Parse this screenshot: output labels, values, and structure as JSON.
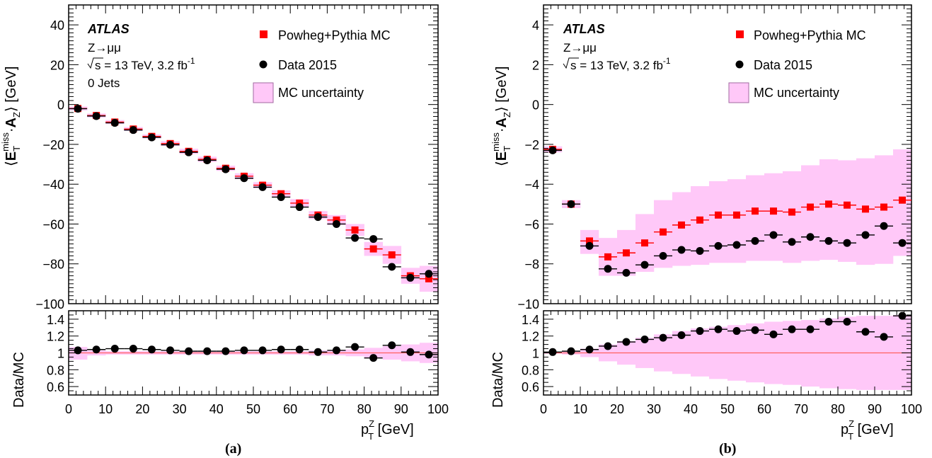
{
  "chart_data": [
    {
      "panel_label": "(a)",
      "type": "scatter",
      "experiment": "ATLAS",
      "process": "Z→μμ",
      "energy_text": "s = 13 TeV, 3.2 fb",
      "lumi_exp": "-1",
      "extra_text": "0 Jets",
      "legend": {
        "mc": "Powheg+Pythia MC",
        "data": "Data 2015",
        "unc": "MC uncertainty"
      },
      "ylabel_main": "E_T^miss · A_Z [GeV]",
      "ylabel_ratio": "Data/MC",
      "xlabel": "p_T^Z [GeV]",
      "xlim": [
        0,
        100
      ],
      "ylim": [
        -100,
        50
      ],
      "ratio_ylim": [
        0.5,
        1.5
      ],
      "x_ticks": [
        "0",
        "10",
        "20",
        "30",
        "40",
        "50",
        "60",
        "70",
        "80",
        "90",
        "100"
      ],
      "y_ticks": [
        "40",
        "20",
        "0",
        "−20",
        "−40",
        "−60",
        "−80",
        "−100"
      ],
      "ratio_ticks": [
        "1.4",
        "1.2",
        "1",
        "0.8",
        "0.6"
      ],
      "x": [
        2.5,
        7.5,
        12.5,
        17.5,
        22.5,
        27.5,
        32.5,
        37.5,
        42.5,
        47.5,
        52.5,
        57.5,
        62.5,
        67.5,
        72.5,
        77.5,
        82.5,
        87.5,
        92.5,
        97.5
      ],
      "mc": [
        -2,
        -5.5,
        -8.8,
        -12.3,
        -16,
        -19.6,
        -23.5,
        -27.5,
        -32,
        -36,
        -40.5,
        -44.8,
        -49.5,
        -55.5,
        -58,
        -63,
        -72.5,
        -75.5,
        -86,
        -87.5
      ],
      "data": [
        -2.1,
        -5.8,
        -9.2,
        -12.8,
        -16.5,
        -20.2,
        -24,
        -28,
        -32.5,
        -37,
        -41.5,
        -46.5,
        -51.5,
        -56.5,
        -60,
        -67,
        -67.5,
        -81.5,
        -87,
        -85
      ],
      "mc_unc_low": [
        -3,
        -6.5,
        -9.8,
        -13.3,
        -17,
        -20.8,
        -24.8,
        -28.8,
        -33.3,
        -37.5,
        -42,
        -46.5,
        -51.5,
        -57.5,
        -60.5,
        -66,
        -76,
        -80,
        -90,
        -94
      ],
      "mc_unc_high": [
        -1,
        -4.5,
        -7.8,
        -11.3,
        -15,
        -18.4,
        -22.2,
        -26.2,
        -30.7,
        -34.5,
        -39,
        -43.1,
        -47.5,
        -53.5,
        -55.5,
        -60,
        -69,
        -71,
        -82,
        -81
      ],
      "ratio": [
        1.03,
        1.04,
        1.05,
        1.05,
        1.04,
        1.03,
        1.02,
        1.02,
        1.02,
        1.03,
        1.03,
        1.04,
        1.04,
        1.01,
        1.03,
        1.07,
        0.94,
        1.09,
        1.01,
        0.98
      ],
      "ratio_unc_low": [
        0.92,
        0.97,
        0.98,
        0.98,
        0.98,
        0.98,
        0.98,
        0.98,
        0.98,
        0.98,
        0.98,
        0.98,
        0.98,
        0.97,
        0.97,
        0.96,
        0.94,
        0.92,
        0.9,
        0.88
      ],
      "ratio_unc_high": [
        1.07,
        1.03,
        1.02,
        1.02,
        1.02,
        1.02,
        1.02,
        1.02,
        1.02,
        1.02,
        1.02,
        1.02,
        1.02,
        1.03,
        1.03,
        1.04,
        1.06,
        1.08,
        1.1,
        1.12
      ]
    },
    {
      "panel_label": "(b)",
      "type": "scatter",
      "experiment": "ATLAS",
      "process": "Z→μμ",
      "energy_text": "s = 13 TeV, 3.2 fb",
      "lumi_exp": "-1",
      "legend": {
        "mc": "Powheg+Pythia MC",
        "data": "Data 2015",
        "unc": "MC uncertainty"
      },
      "ylabel_main": "E_T^miss · A_Z [GeV]",
      "ylabel_ratio": "Data/MC",
      "xlabel": "p_T^Z [GeV]",
      "xlim": [
        0,
        100
      ],
      "ylim": [
        -10,
        5
      ],
      "ratio_ylim": [
        0.5,
        1.5
      ],
      "x_ticks": [
        "0",
        "10",
        "20",
        "30",
        "40",
        "50",
        "60",
        "70",
        "80",
        "90",
        "100"
      ],
      "y_ticks": [
        "4",
        "2",
        "0",
        "−2",
        "−4",
        "−6",
        "−8",
        "−10"
      ],
      "ratio_ticks": [
        "1.4",
        "1.2",
        "1",
        "0.8",
        "0.6"
      ],
      "x": [
        2.5,
        7.5,
        12.5,
        17.5,
        22.5,
        27.5,
        32.5,
        37.5,
        42.5,
        47.5,
        52.5,
        57.5,
        62.5,
        67.5,
        72.5,
        77.5,
        82.5,
        87.5,
        92.5,
        97.5
      ],
      "mc": [
        -2.25,
        -5,
        -6.85,
        -7.65,
        -7.45,
        -6.95,
        -6.4,
        -6.05,
        -5.8,
        -5.55,
        -5.55,
        -5.35,
        -5.35,
        -5.4,
        -5.15,
        -5,
        -5.05,
        -5.25,
        -5.15,
        -4.8
      ],
      "data": [
        -2.3,
        -5,
        -7.1,
        -8.25,
        -8.45,
        -8.05,
        -7.6,
        -7.3,
        -7.35,
        -7.1,
        -7.05,
        -6.85,
        -6.55,
        -6.9,
        -6.65,
        -6.85,
        -6.95,
        -6.55,
        -6.1,
        -6.95
      ],
      "mc_unc_low": [
        -2.4,
        -5.2,
        -7.5,
        -8.6,
        -8.6,
        -8.4,
        -8.2,
        -8.1,
        -8.05,
        -7.95,
        -7.95,
        -7.85,
        -7.85,
        -7.95,
        -7.85,
        -7.8,
        -7.9,
        -8.05,
        -8,
        -7.6
      ],
      "mc_unc_high": [
        -2.1,
        -4.8,
        -6.3,
        -6.7,
        -6.3,
        -5.5,
        -4.8,
        -4.4,
        -4.1,
        -3.85,
        -3.75,
        -3.55,
        -3.45,
        -3.35,
        -3.05,
        -2.75,
        -2.8,
        -2.7,
        -2.55,
        -2.25
      ],
      "ratio": [
        1.01,
        1.02,
        1.04,
        1.08,
        1.13,
        1.16,
        1.18,
        1.21,
        1.26,
        1.28,
        1.26,
        1.27,
        1.22,
        1.28,
        1.28,
        1.37,
        1.37,
        1.25,
        1.19,
        1.44
      ],
      "ratio_unc_low": [
        0.99,
        0.98,
        0.95,
        0.9,
        0.86,
        0.82,
        0.78,
        0.75,
        0.72,
        0.69,
        0.67,
        0.65,
        0.63,
        0.62,
        0.6,
        0.58,
        0.57,
        0.56,
        0.56,
        0.56
      ],
      "ratio_unc_high": [
        1.01,
        1.02,
        1.05,
        1.1,
        1.14,
        1.18,
        1.22,
        1.26,
        1.29,
        1.31,
        1.33,
        1.35,
        1.37,
        1.38,
        1.39,
        1.41,
        1.43,
        1.44,
        1.44,
        1.45
      ]
    }
  ],
  "colors": {
    "mc": "#ff0000",
    "data": "#000000",
    "unc_fill": "#ffc8f8",
    "unc_stroke": "#a06aa0",
    "ref_line": "#ff6060"
  }
}
